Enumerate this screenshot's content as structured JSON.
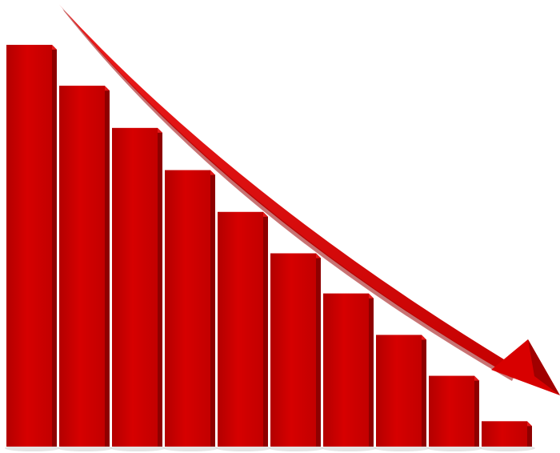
{
  "chart_data": {
    "type": "bar",
    "title": "",
    "xlabel": "",
    "ylabel": "",
    "categories": [
      "",
      "",
      "",
      "",
      "",
      "",
      "",
      "",
      "",
      ""
    ],
    "values": [
      100,
      89.8,
      79.3,
      68.8,
      58.4,
      48.1,
      38.1,
      27.8,
      17.6,
      6.3
    ],
    "ylim": [
      0,
      100
    ],
    "grid": false,
    "legend": "none",
    "trend_arrow": {
      "direction": "down",
      "color": "#d80000"
    },
    "colors": {
      "bar_front": "#cc0000",
      "bar_side": "#8e0000",
      "bar_top": "#e31a1a",
      "arrow": "#d80000",
      "shadow": "#d9d9d9"
    }
  }
}
